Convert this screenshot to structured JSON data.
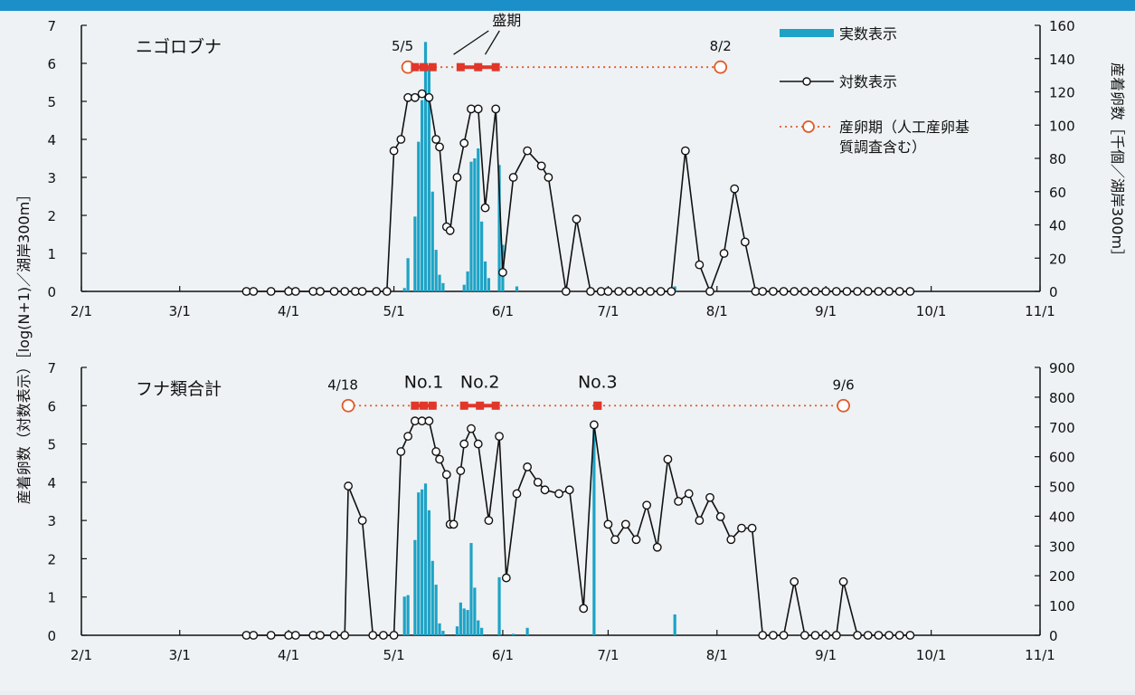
{
  "chart_data": [
    {
      "type": "line",
      "panel_title": "ニゴロブナ",
      "x_ticks": [
        "2/1",
        "3/1",
        "4/1",
        "5/1",
        "6/1",
        "7/1",
        "8/1",
        "9/1",
        "10/1",
        "11/1"
      ],
      "y_left": {
        "lim": [
          0,
          7
        ],
        "ticks": [
          "0",
          "1",
          "2",
          "3",
          "4",
          "5",
          "6",
          "7"
        ]
      },
      "y_right": {
        "lim": [
          0,
          160
        ],
        "ticks": [
          "0",
          "20",
          "40",
          "60",
          "80",
          "100",
          "120",
          "140",
          "160"
        ]
      },
      "spawning_period": {
        "start": "5/5",
        "end": "8/2",
        "y": 5.9
      },
      "peak_segments": [
        [
          "5/7",
          "5/12"
        ],
        [
          "5/20",
          "5/30"
        ]
      ],
      "peak_label": "盛期",
      "log_series": [
        [
          "3/20",
          0
        ],
        [
          "3/22",
          0
        ],
        [
          "3/27",
          0
        ],
        [
          "4/1",
          0
        ],
        [
          "4/3",
          0
        ],
        [
          "4/8",
          0
        ],
        [
          "4/10",
          0
        ],
        [
          "4/14",
          0
        ],
        [
          "4/17",
          0
        ],
        [
          "4/20",
          0
        ],
        [
          "4/22",
          0
        ],
        [
          "4/26",
          0
        ],
        [
          "4/29",
          0
        ],
        [
          "5/1",
          3.7
        ],
        [
          "5/3",
          4.0
        ],
        [
          "5/5",
          5.1
        ],
        [
          "5/7",
          5.1
        ],
        [
          "5/9",
          5.2
        ],
        [
          "5/11",
          5.1
        ],
        [
          "5/13",
          4.0
        ],
        [
          "5/14",
          3.8
        ],
        [
          "5/16",
          1.7
        ],
        [
          "5/17",
          1.6
        ],
        [
          "5/19",
          3.0
        ],
        [
          "5/21",
          3.9
        ],
        [
          "5/23",
          4.8
        ],
        [
          "5/25",
          4.8
        ],
        [
          "5/27",
          2.2
        ],
        [
          "5/30",
          4.8
        ],
        [
          "6/1",
          0.5
        ],
        [
          "6/4",
          3.0
        ],
        [
          "6/8",
          3.7
        ],
        [
          "6/12",
          3.3
        ],
        [
          "6/14",
          3.0
        ],
        [
          "6/19",
          0
        ],
        [
          "6/22",
          1.9
        ],
        [
          "6/26",
          0
        ],
        [
          "6/29",
          0
        ],
        [
          "7/1",
          0
        ],
        [
          "7/4",
          0
        ],
        [
          "7/7",
          0
        ],
        [
          "7/10",
          0
        ],
        [
          "7/13",
          0
        ],
        [
          "7/16",
          0
        ],
        [
          "7/19",
          0
        ],
        [
          "7/23",
          3.7
        ],
        [
          "7/27",
          0.7
        ],
        [
          "7/30",
          0
        ],
        [
          "8/3",
          1.0
        ],
        [
          "8/6",
          2.7
        ],
        [
          "8/9",
          1.3
        ],
        [
          "8/12",
          0
        ],
        [
          "8/14",
          0
        ],
        [
          "8/17",
          0
        ],
        [
          "8/20",
          0
        ],
        [
          "8/23",
          0
        ],
        [
          "8/26",
          0
        ],
        [
          "8/29",
          0
        ],
        [
          "9/1",
          0
        ],
        [
          "9/4",
          0
        ],
        [
          "9/7",
          0
        ],
        [
          "9/10",
          0
        ],
        [
          "9/13",
          0
        ],
        [
          "9/16",
          0
        ],
        [
          "9/19",
          0
        ],
        [
          "9/22",
          0
        ],
        [
          "9/25",
          0
        ]
      ],
      "count_bars": [
        [
          "5/4",
          2
        ],
        [
          "5/5",
          20
        ],
        [
          "5/7",
          45
        ],
        [
          "5/8",
          90
        ],
        [
          "5/9",
          115
        ],
        [
          "5/10",
          150
        ],
        [
          "5/11",
          135
        ],
        [
          "5/12",
          60
        ],
        [
          "5/13",
          25
        ],
        [
          "5/14",
          10
        ],
        [
          "5/15",
          5
        ],
        [
          "5/21",
          4
        ],
        [
          "5/22",
          12
        ],
        [
          "5/23",
          78
        ],
        [
          "5/24",
          80
        ],
        [
          "5/25",
          86
        ],
        [
          "5/26",
          42
        ],
        [
          "5/27",
          18
        ],
        [
          "5/28",
          8
        ],
        [
          "5/31",
          76
        ],
        [
          "6/1",
          28
        ],
        [
          "6/5",
          3
        ],
        [
          "7/20",
          3
        ]
      ]
    },
    {
      "type": "line",
      "panel_title": "フナ類合計",
      "x_ticks": [
        "2/1",
        "3/1",
        "4/1",
        "5/1",
        "6/1",
        "7/1",
        "8/1",
        "9/1",
        "10/1",
        "11/1"
      ],
      "y_left": {
        "lim": [
          0,
          7
        ],
        "ticks": [
          "0",
          "1",
          "2",
          "3",
          "4",
          "5",
          "6",
          "7"
        ]
      },
      "y_right": {
        "lim": [
          0,
          900
        ],
        "ticks": [
          "0",
          "100",
          "200",
          "300",
          "400",
          "500",
          "600",
          "700",
          "800",
          "900"
        ]
      },
      "spawning_period": {
        "start": "4/18",
        "end": "9/6",
        "y": 6.0
      },
      "peak_segments": [
        [
          "5/7",
          "5/12"
        ],
        [
          "5/21",
          "5/30"
        ],
        [
          "6/28",
          "6/28"
        ]
      ],
      "peak_labels": [
        "No.1",
        "No.2",
        "No.3"
      ],
      "log_series": [
        [
          "3/20",
          0
        ],
        [
          "3/22",
          0
        ],
        [
          "3/27",
          0
        ],
        [
          "4/1",
          0
        ],
        [
          "4/3",
          0
        ],
        [
          "4/8",
          0
        ],
        [
          "4/10",
          0
        ],
        [
          "4/14",
          0
        ],
        [
          "4/17",
          0
        ],
        [
          "4/18",
          3.9
        ],
        [
          "4/22",
          3.0
        ],
        [
          "4/25",
          0
        ],
        [
          "4/28",
          0
        ],
        [
          "5/1",
          0
        ],
        [
          "5/3",
          4.8
        ],
        [
          "5/5",
          5.2
        ],
        [
          "5/7",
          5.6
        ],
        [
          "5/9",
          5.6
        ],
        [
          "5/11",
          5.6
        ],
        [
          "5/13",
          4.8
        ],
        [
          "5/14",
          4.6
        ],
        [
          "5/16",
          4.2
        ],
        [
          "5/17",
          2.9
        ],
        [
          "5/18",
          2.9
        ],
        [
          "5/20",
          4.3
        ],
        [
          "5/21",
          5.0
        ],
        [
          "5/23",
          5.4
        ],
        [
          "5/25",
          5.0
        ],
        [
          "5/28",
          3.0
        ],
        [
          "5/31",
          5.2
        ],
        [
          "6/2",
          1.5
        ],
        [
          "6/5",
          3.7
        ],
        [
          "6/8",
          4.4
        ],
        [
          "6/11",
          4.0
        ],
        [
          "6/13",
          3.8
        ],
        [
          "6/17",
          3.7
        ],
        [
          "6/20",
          3.8
        ],
        [
          "6/24",
          0.7
        ],
        [
          "6/27",
          5.5
        ],
        [
          "7/1",
          2.9
        ],
        [
          "7/3",
          2.5
        ],
        [
          "7/6",
          2.9
        ],
        [
          "7/9",
          2.5
        ],
        [
          "7/12",
          3.4
        ],
        [
          "7/15",
          2.3
        ],
        [
          "7/18",
          4.6
        ],
        [
          "7/21",
          3.5
        ],
        [
          "7/24",
          3.7
        ],
        [
          "7/27",
          3.0
        ],
        [
          "7/30",
          3.6
        ],
        [
          "8/2",
          3.1
        ],
        [
          "8/5",
          2.5
        ],
        [
          "8/8",
          2.8
        ],
        [
          "8/11",
          2.8
        ],
        [
          "8/14",
          0
        ],
        [
          "8/17",
          0
        ],
        [
          "8/20",
          0
        ],
        [
          "8/23",
          1.4
        ],
        [
          "8/26",
          0
        ],
        [
          "8/29",
          0
        ],
        [
          "9/1",
          0
        ],
        [
          "9/4",
          0
        ],
        [
          "9/6",
          1.4
        ],
        [
          "9/10",
          0
        ],
        [
          "9/13",
          0
        ],
        [
          "9/16",
          0
        ],
        [
          "9/19",
          0
        ],
        [
          "9/22",
          0
        ],
        [
          "9/25",
          0
        ]
      ],
      "count_bars": [
        [
          "4/30",
          3
        ],
        [
          "5/4",
          130
        ],
        [
          "5/5",
          135
        ],
        [
          "5/7",
          320
        ],
        [
          "5/8",
          480
        ],
        [
          "5/9",
          490
        ],
        [
          "5/10",
          510
        ],
        [
          "5/11",
          420
        ],
        [
          "5/12",
          250
        ],
        [
          "5/13",
          170
        ],
        [
          "5/14",
          40
        ],
        [
          "5/15",
          15
        ],
        [
          "5/19",
          30
        ],
        [
          "5/20",
          110
        ],
        [
          "5/21",
          90
        ],
        [
          "5/22",
          85
        ],
        [
          "5/23",
          310
        ],
        [
          "5/24",
          160
        ],
        [
          "5/25",
          50
        ],
        [
          "5/26",
          25
        ],
        [
          "5/31",
          195
        ],
        [
          "6/4",
          5
        ],
        [
          "6/8",
          25
        ],
        [
          "6/27",
          720
        ],
        [
          "7/20",
          70
        ]
      ]
    }
  ],
  "legend": [
    {
      "label": "実数表示",
      "kind": "bar",
      "color": "#1ea3c6"
    },
    {
      "label": "対数表示",
      "kind": "line-marker",
      "color": "#111111"
    },
    {
      "label": "産卵期（人工産卵基質調査含む）",
      "kind": "dotted-circle",
      "color": "#e05a2a"
    }
  ],
  "y_axis_left_title": "産着卵数（対数表示）［log(N+1)／湖岸300m］",
  "y_axis_right_title": "産着卵数［千個／湖岸300m］",
  "colors": {
    "bars": "#1ea3c6",
    "line": "#111111",
    "period": "#e05a2a",
    "peak": "#e0372a"
  }
}
